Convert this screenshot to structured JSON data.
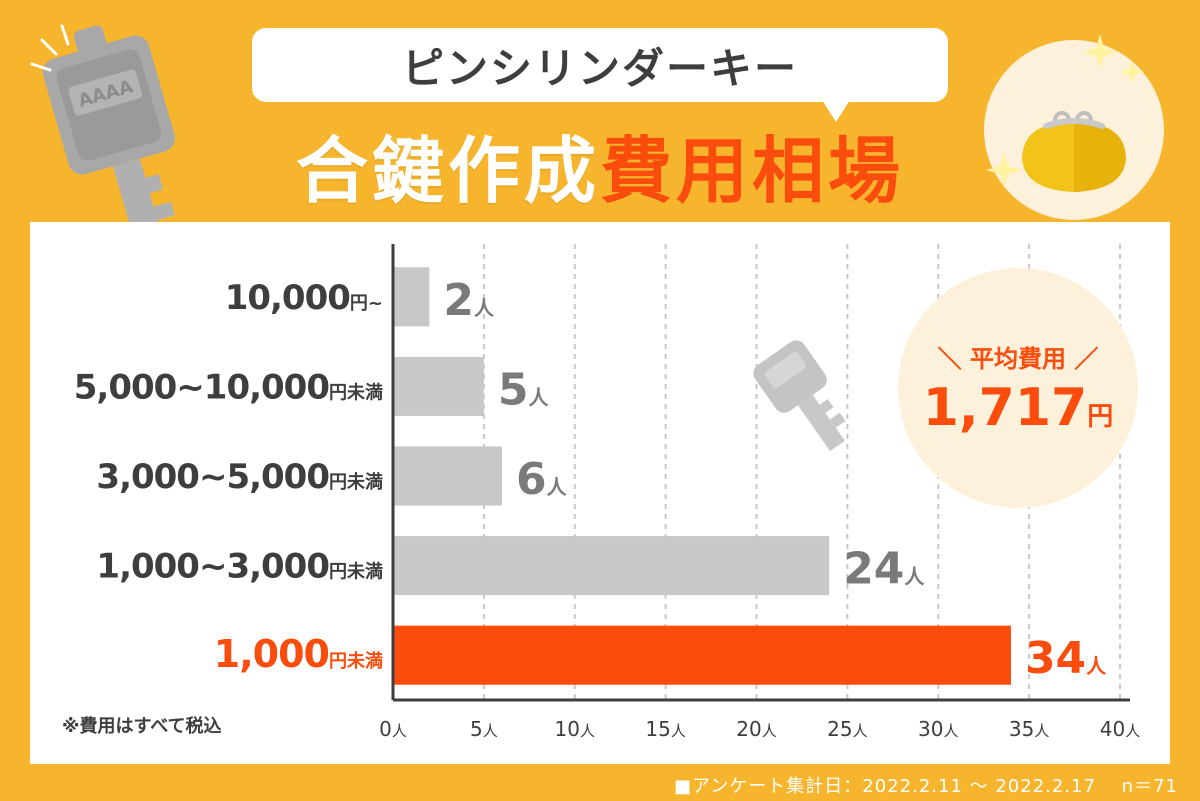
{
  "header": {
    "subtitle": "ピンシリンダーキー",
    "title_part1": "合鍵作成",
    "title_part2": "費用相場"
  },
  "average": {
    "label": "＼ 平均費用 ／",
    "value": "1,717",
    "unit": "円"
  },
  "note": "※費用はすべて税込",
  "survey": "■アンケート集計日：2022.2.11 ～ 2022.2.17　 n＝71",
  "key_tag": "AAAA",
  "colors": {
    "background": "#f6b52d",
    "accent": "#fa4d0d",
    "bar_gray": "#c8c8c8",
    "text_dark": "#3e3e3e",
    "value_gray": "#7a7a7a"
  },
  "chart_data": {
    "type": "bar",
    "orientation": "horizontal",
    "categories": [
      {
        "amount": "10,000",
        "suffix": "円~"
      },
      {
        "amount": "5,000~10,000",
        "suffix": "円未満"
      },
      {
        "amount": "3,000~5,000",
        "suffix": "円未満"
      },
      {
        "amount": "1,000~3,000",
        "suffix": "円未満"
      },
      {
        "amount": "1,000",
        "suffix": "円未満"
      }
    ],
    "values": [
      2,
      5,
      6,
      24,
      34
    ],
    "value_unit": "人",
    "highlight_index": 4,
    "xlim": [
      0,
      40
    ],
    "xticks": [
      0,
      5,
      10,
      15,
      20,
      25,
      30,
      35,
      40
    ],
    "xtick_unit": "人",
    "grid": "vertical dashed"
  }
}
